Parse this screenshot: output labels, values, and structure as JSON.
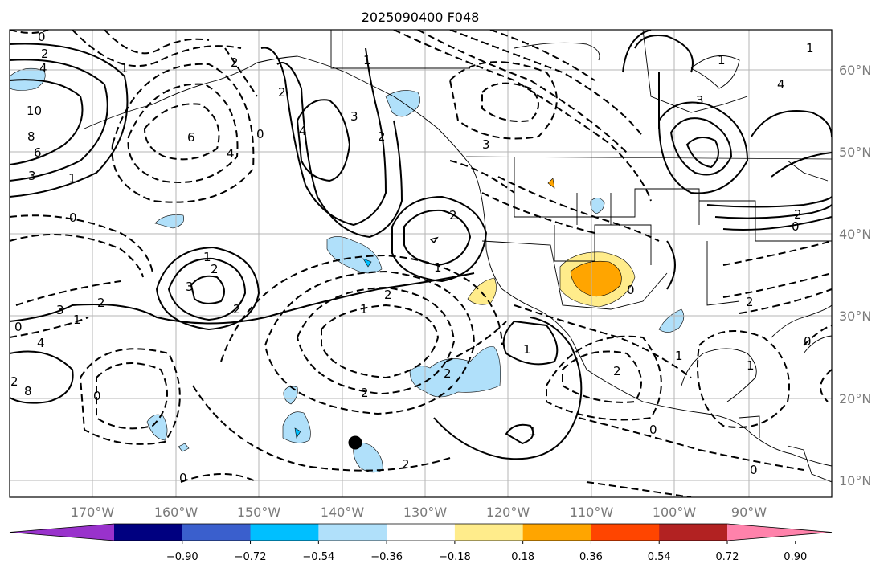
{
  "title": "2025090400 F048",
  "lon_ticks": [
    "170°W",
    "160°W",
    "150°W",
    "140°W",
    "130°W",
    "120°W",
    "110°W",
    "100°W",
    "90°W"
  ],
  "lat_ticks": [
    "60°N",
    "50°N",
    "40°N",
    "30°N",
    "20°N",
    "10°N"
  ],
  "colorbar": {
    "colors": [
      "#9932cc",
      "#000080",
      "#3a5fcd",
      "#00bfff",
      "#b0e0fa",
      "#ffffff",
      "#ffec8b",
      "#ffa500",
      "#ff4500",
      "#b22222",
      "#ff82ab"
    ],
    "ticks": [
      "−0.90",
      "−0.72",
      "−0.54",
      "−0.36",
      "−0.18",
      "0.18",
      "0.36",
      "0.54",
      "0.72",
      "0.90"
    ]
  },
  "contour_labels": [
    "0",
    "2",
    "4",
    "10",
    "8",
    "6",
    "3",
    "1",
    "1",
    "2",
    "4",
    "2",
    "4",
    "6",
    "0",
    "3",
    "2",
    "1",
    "0",
    "1",
    "2",
    "3",
    "2",
    "2",
    "3",
    "2",
    "1",
    "0",
    "4",
    "8",
    "0",
    "2",
    "1",
    "2",
    "1",
    "2",
    "2",
    "2",
    "1",
    "2",
    "1",
    "0",
    "1",
    "0",
    "0",
    "4",
    "2",
    "0",
    "1",
    "1",
    "3",
    "0",
    "0",
    "3",
    "1",
    "2"
  ],
  "marker": "filled-black-circle"
}
